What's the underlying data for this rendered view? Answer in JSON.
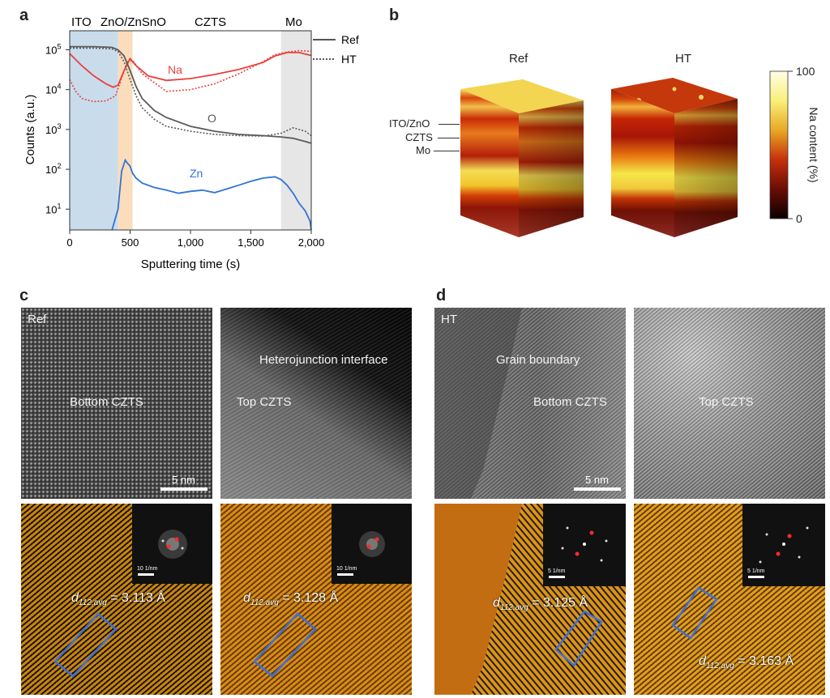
{
  "panels": {
    "a": "a",
    "b": "b",
    "c": "c",
    "d": "d"
  },
  "chart_data": {
    "type": "line",
    "xlabel": "Sputtering time (s)",
    "ylabel": "Counts (a.u.)",
    "xlim": [
      0,
      2000
    ],
    "ylim": [
      3,
      300000
    ],
    "yscale": "log",
    "x_ticks": [
      "0",
      "500",
      "1,000",
      "1,500",
      "2,000"
    ],
    "y_ticks": [
      {
        "base": "10",
        "exp": "5"
      },
      {
        "base": "10",
        "exp": "4"
      },
      {
        "base": "10",
        "exp": "3"
      },
      {
        "base": "10",
        "exp": "2"
      },
      {
        "base": "10",
        "exp": "1"
      }
    ],
    "regions": [
      {
        "label": "ITO",
        "from": 0,
        "to": 400,
        "color": "#c9dcec"
      },
      {
        "label": "ZnO/ZnSnO",
        "from": 400,
        "to": 520,
        "color": "#fbdcbb"
      },
      {
        "label": "CZTS",
        "from": 520,
        "to": 1750,
        "color": "#ffffff"
      },
      {
        "label": "Mo",
        "from": 1750,
        "to": 2000,
        "color": "#e6e6e6"
      }
    ],
    "legend": [
      {
        "name": "Ref",
        "style": "solid"
      },
      {
        "name": "HT",
        "style": "dotted"
      }
    ],
    "series": [
      {
        "name": "Na",
        "element_label": "Na",
        "color": "#e8413c",
        "variant": "Ref",
        "x": [
          0,
          100,
          200,
          300,
          360,
          400,
          450,
          500,
          550,
          650,
          800,
          1000,
          1200,
          1400,
          1600,
          1700,
          1800,
          1900,
          2000
        ],
        "y": [
          80000,
          40000,
          22000,
          14000,
          11500,
          13000,
          30000,
          60000,
          40000,
          22000,
          17000,
          19000,
          24000,
          32000,
          48000,
          70000,
          85000,
          85000,
          72000
        ]
      },
      {
        "name": "Na",
        "color": "#e8413c",
        "variant": "HT",
        "x": [
          0,
          50,
          100,
          200,
          300,
          380,
          430,
          480,
          520,
          600,
          800,
          1000,
          1200,
          1400,
          1600,
          1700,
          1800,
          1900,
          2000
        ],
        "y": [
          18000,
          9000,
          6000,
          5000,
          5200,
          7000,
          20000,
          50000,
          55000,
          25000,
          9000,
          10000,
          14000,
          25000,
          50000,
          75000,
          88000,
          95000,
          92000
        ]
      },
      {
        "name": "O",
        "element_label": "O",
        "color": "#5a5a5a",
        "variant": "Ref",
        "x": [
          0,
          200,
          350,
          400,
          450,
          500,
          550,
          600,
          700,
          800,
          1000,
          1200,
          1400,
          1600,
          1750,
          1850,
          1950,
          2000
        ],
        "y": [
          120000,
          120000,
          115000,
          100000,
          70000,
          30000,
          12000,
          6000,
          3000,
          2000,
          1200,
          900,
          750,
          700,
          650,
          600,
          500,
          450
        ]
      },
      {
        "name": "O",
        "color": "#5a5a5a",
        "variant": "HT",
        "x": [
          0,
          200,
          350,
          400,
          450,
          500,
          550,
          600,
          700,
          800,
          1000,
          1200,
          1400,
          1600,
          1750,
          1850,
          1950,
          2000
        ],
        "y": [
          110000,
          110000,
          105000,
          90000,
          50000,
          18000,
          7000,
          3500,
          1800,
          1200,
          900,
          750,
          700,
          680,
          800,
          1100,
          900,
          700
        ]
      },
      {
        "name": "Zn",
        "element_label": "Zn",
        "color": "#2f74d9",
        "variant": "Ref",
        "x": [
          350,
          400,
          430,
          460,
          480,
          500,
          520,
          550,
          600,
          700,
          800,
          900,
          1000,
          1100,
          1200,
          1300,
          1400,
          1500,
          1600,
          1700,
          1750,
          1800,
          1850,
          1900,
          1950,
          1990,
          2000
        ],
        "y": [
          3,
          10,
          90,
          170,
          140,
          120,
          80,
          60,
          45,
          35,
          30,
          25,
          28,
          30,
          26,
          32,
          40,
          50,
          60,
          65,
          55,
          40,
          25,
          14,
          9,
          5,
          3
        ]
      }
    ],
    "element_labels": [
      "Na",
      "O",
      "Zn"
    ]
  },
  "panel_b": {
    "cube_titles": [
      "Ref",
      "HT"
    ],
    "layer_labels": [
      "ITO/ZnO",
      "CZTS",
      "Mo"
    ],
    "colorbar": {
      "max": "100",
      "min": "0",
      "title": "Na content (%)"
    }
  },
  "panel_c": {
    "sample": "Ref",
    "left_label": "Bottom CZTS",
    "right_label": "Top CZTS",
    "interface_label": "Heterojunction interface",
    "scalebar": "5 nm",
    "fft_scale": "10 1/nm",
    "d_sym": "d",
    "d_sub": "112_avg",
    "d_left": " = 3.113 Å",
    "d_right": " = 3.128 Å"
  },
  "panel_d": {
    "sample": "HT",
    "gb_label": "Grain boundary",
    "left_label": "Bottom CZTS",
    "right_label": "Top CZTS",
    "scalebar": "5 nm",
    "fft_scale": "5 1/nm",
    "d_sym": "d",
    "d_sub": "112_avg",
    "d_left": " = 3.125 Å",
    "d_right": " = 3.163 Å"
  }
}
